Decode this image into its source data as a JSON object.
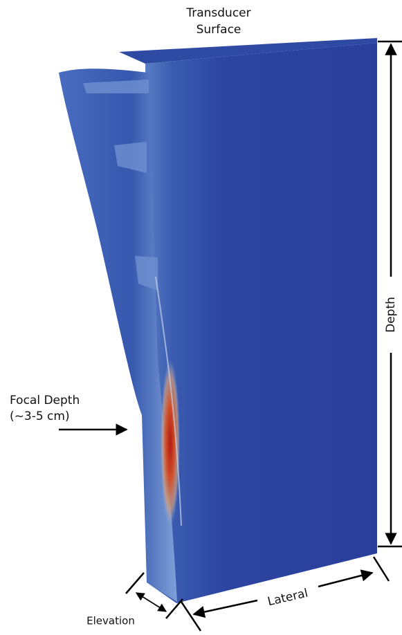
{
  "labels": {
    "transducer_surface": [
      "Transducer",
      "Surface"
    ],
    "focal_depth": [
      "Focal Depth",
      "(~3-5 cm)"
    ],
    "depth": "Depth",
    "lateral": "Lateral",
    "elevation": "Elevation"
  }
}
